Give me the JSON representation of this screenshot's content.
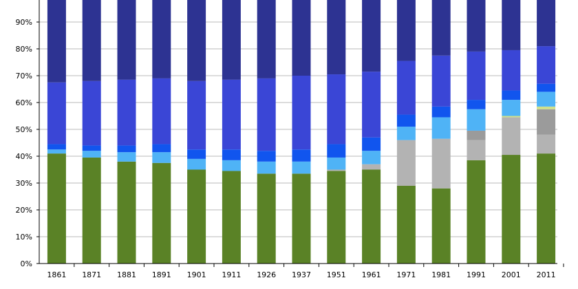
{
  "chart_data": {
    "type": "bar",
    "stacked": true,
    "normalized": true,
    "categories": [
      "1861",
      "1871",
      "1881",
      "1891",
      "1901",
      "1911",
      "1926",
      "1937",
      "1951",
      "1961",
      "1971",
      "1981",
      "1991",
      "2001",
      "2011"
    ],
    "ylim": [
      0,
      100
    ],
    "yticks": [
      "0%",
      "10%",
      "20%",
      "30%",
      "40%",
      "50%",
      "60%",
      "70%",
      "80%",
      "90%"
    ],
    "grid": true,
    "legend": "none",
    "series": [
      {
        "color": "#5a8226",
        "values": [
          41,
          39.5,
          38,
          37.5,
          35,
          34.5,
          33.5,
          33.5,
          34.5,
          35,
          29,
          28,
          38.5,
          40.5,
          41
        ]
      },
      {
        "color": "#9c9c9c",
        "values": [
          0,
          0,
          0,
          0,
          0,
          0,
          0,
          0,
          0,
          0,
          0,
          0,
          0,
          0,
          0
        ]
      },
      {
        "color": "#b3b3b3",
        "values": [
          0,
          0,
          0,
          0,
          0,
          0,
          0,
          0,
          0.5,
          2,
          17,
          18.5,
          7.5,
          14,
          7
        ]
      },
      {
        "color": "#9b9b9b",
        "values": [
          0,
          0,
          0,
          0,
          0,
          0,
          0,
          0,
          0,
          0,
          0,
          0,
          3.5,
          0,
          9.5
        ]
      },
      {
        "color": "#cfe08a",
        "values": [
          0,
          0,
          0,
          0,
          0,
          0,
          0,
          0,
          0,
          0,
          0,
          0,
          0,
          0.5,
          1
        ]
      },
      {
        "color": "#4fb3f6",
        "values": [
          1.5,
          2.5,
          3.5,
          4,
          4,
          4,
          4.5,
          4.5,
          4.5,
          5,
          5,
          8,
          8,
          6,
          5.5
        ]
      },
      {
        "color": "#1155ee",
        "values": [
          2,
          2,
          2.5,
          3,
          3.5,
          4,
          4,
          4.5,
          5,
          5,
          4.5,
          4,
          3.5,
          3.5,
          3
        ]
      },
      {
        "color": "#3a46d6",
        "values": [
          23,
          24,
          24.5,
          24.5,
          25.5,
          26,
          27,
          27.5,
          26,
          24.5,
          20,
          19,
          18,
          15,
          14
        ]
      },
      {
        "color": "#2d3392",
        "values": [
          32.5,
          32,
          31.5,
          31,
          32,
          31.5,
          31,
          30,
          30,
          28.5,
          24.5,
          22.5,
          21,
          20.5,
          19
        ]
      }
    ]
  }
}
